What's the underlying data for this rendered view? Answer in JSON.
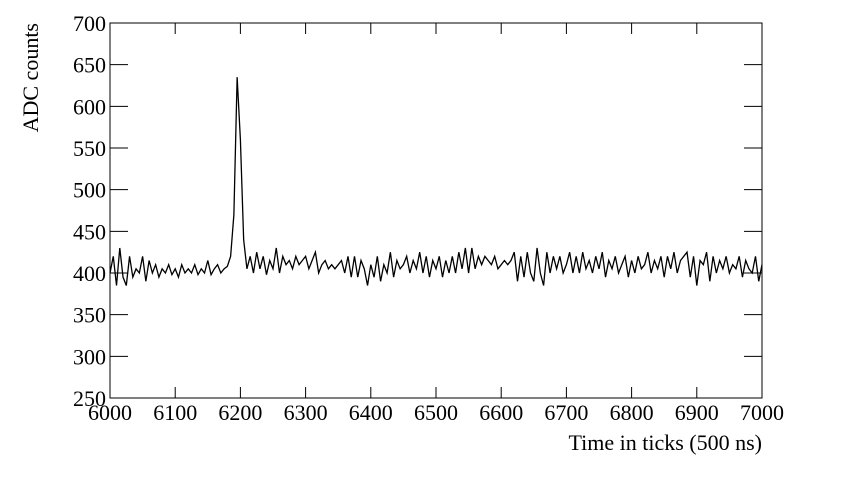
{
  "chart_data": {
    "type": "line",
    "x_label": "Time in ticks (500 ns)",
    "y_label": "ADC counts",
    "color": "#000000",
    "xlim": [
      6000,
      7000
    ],
    "ylim": [
      250,
      700
    ],
    "xticks": [
      6000,
      6100,
      6200,
      6300,
      6400,
      6500,
      6600,
      6700,
      6800,
      6900,
      7000
    ],
    "yticks": [
      250,
      300,
      350,
      400,
      450,
      500,
      550,
      600,
      650,
      700
    ],
    "x": [
      6000,
      6005,
      6010,
      6015,
      6020,
      6025,
      6030,
      6035,
      6040,
      6045,
      6050,
      6055,
      6060,
      6065,
      6070,
      6075,
      6080,
      6085,
      6090,
      6095,
      6100,
      6105,
      6110,
      6115,
      6120,
      6125,
      6130,
      6135,
      6140,
      6145,
      6150,
      6155,
      6160,
      6165,
      6170,
      6175,
      6180,
      6185,
      6190,
      6195,
      6200,
      6205,
      6210,
      6215,
      6220,
      6225,
      6230,
      6235,
      6240,
      6245,
      6250,
      6255,
      6260,
      6265,
      6270,
      6275,
      6280,
      6285,
      6290,
      6295,
      6300,
      6305,
      6310,
      6315,
      6320,
      6325,
      6330,
      6335,
      6340,
      6345,
      6350,
      6355,
      6360,
      6365,
      6370,
      6375,
      6380,
      6385,
      6390,
      6395,
      6400,
      6405,
      6410,
      6415,
      6420,
      6425,
      6430,
      6435,
      6440,
      6445,
      6450,
      6455,
      6460,
      6465,
      6470,
      6475,
      6480,
      6485,
      6490,
      6495,
      6500,
      6505,
      6510,
      6515,
      6520,
      6525,
      6530,
      6535,
      6540,
      6545,
      6550,
      6555,
      6560,
      6565,
      6570,
      6575,
      6580,
      6585,
      6590,
      6595,
      6600,
      6605,
      6610,
      6615,
      6620,
      6625,
      6630,
      6635,
      6640,
      6645,
      6650,
      6655,
      6660,
      6665,
      6670,
      6675,
      6680,
      6685,
      6690,
      6695,
      6700,
      6705,
      6710,
      6715,
      6720,
      6725,
      6730,
      6735,
      6740,
      6745,
      6750,
      6755,
      6760,
      6765,
      6770,
      6775,
      6780,
      6785,
      6790,
      6795,
      6800,
      6805,
      6810,
      6815,
      6820,
      6825,
      6830,
      6835,
      6840,
      6845,
      6850,
      6855,
      6860,
      6865,
      6870,
      6875,
      6880,
      6885,
      6890,
      6895,
      6900,
      6905,
      6910,
      6915,
      6920,
      6925,
      6930,
      6935,
      6940,
      6945,
      6950,
      6955,
      6960,
      6965,
      6970,
      6975,
      6980,
      6985,
      6990,
      6995,
      7000
    ],
    "values": [
      400,
      420,
      385,
      430,
      395,
      385,
      420,
      395,
      405,
      400,
      420,
      390,
      415,
      400,
      410,
      395,
      405,
      400,
      410,
      398,
      405,
      395,
      410,
      400,
      405,
      400,
      410,
      398,
      405,
      400,
      415,
      398,
      405,
      410,
      400,
      405,
      408,
      420,
      470,
      635,
      560,
      440,
      405,
      420,
      400,
      425,
      405,
      420,
      398,
      415,
      405,
      430,
      400,
      420,
      410,
      415,
      405,
      420,
      410,
      415,
      420,
      405,
      415,
      425,
      400,
      410,
      415,
      405,
      410,
      405,
      410,
      415,
      400,
      420,
      395,
      420,
      395,
      415,
      405,
      385,
      410,
      395,
      420,
      390,
      410,
      400,
      425,
      395,
      415,
      405,
      410,
      420,
      400,
      415,
      405,
      425,
      400,
      420,
      395,
      415,
      405,
      420,
      395,
      415,
      400,
      420,
      400,
      425,
      405,
      430,
      400,
      430,
      405,
      420,
      410,
      420,
      415,
      410,
      420,
      405,
      410,
      415,
      410,
      415,
      425,
      390,
      420,
      395,
      425,
      400,
      390,
      430,
      400,
      385,
      425,
      400,
      420,
      405,
      420,
      400,
      410,
      425,
      400,
      420,
      400,
      425,
      405,
      415,
      400,
      420,
      405,
      425,
      395,
      415,
      405,
      420,
      400,
      410,
      420,
      395,
      415,
      400,
      420,
      405,
      410,
      425,
      400,
      415,
      405,
      420,
      395,
      420,
      405,
      425,
      400,
      415,
      420,
      425,
      395,
      420,
      385,
      415,
      410,
      425,
      390,
      420,
      400,
      415,
      405,
      420,
      400,
      410,
      405,
      420,
      395,
      415,
      405,
      400,
      420,
      390,
      410
    ]
  }
}
